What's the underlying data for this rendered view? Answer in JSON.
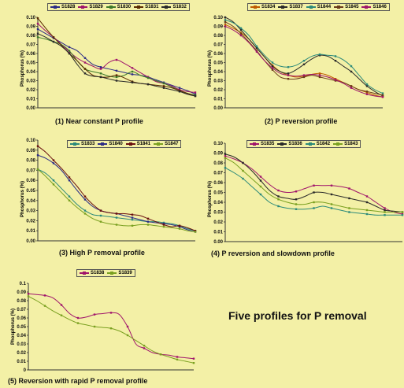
{
  "headline": "Five profiles for P removal",
  "chart_data": [
    {
      "type": "line",
      "caption": "(1) Near constant P profile",
      "ylabel": "Phosphorus (%)",
      "ylim": [
        0,
        0.1
      ],
      "yticks": [
        "0.00",
        "0.01",
        "0.02",
        "0.03",
        "0.04",
        "0.05",
        "0.06",
        "0.07",
        "0.08",
        "0.09",
        "0.10"
      ],
      "x": [
        0,
        1,
        2,
        3,
        4,
        5,
        6,
        7,
        8,
        9,
        10,
        11,
        12,
        13,
        14,
        15,
        16,
        17,
        18,
        19,
        20
      ],
      "series": [
        {
          "name": "S1828",
          "color": "#2c2c86",
          "values": [
            0.087,
            0.082,
            0.077,
            0.072,
            0.067,
            0.063,
            0.055,
            0.048,
            0.045,
            0.043,
            0.041,
            0.039,
            0.037,
            0.036,
            0.034,
            0.031,
            0.028,
            0.025,
            0.022,
            0.019,
            0.015
          ]
        },
        {
          "name": "S1829",
          "color": "#a0156b",
          "values": [
            0.093,
            0.085,
            0.078,
            0.07,
            0.062,
            0.055,
            0.05,
            0.046,
            0.043,
            0.05,
            0.053,
            0.049,
            0.044,
            0.039,
            0.034,
            0.029,
            0.027,
            0.024,
            0.02,
            0.018,
            0.017
          ]
        },
        {
          "name": "S1830",
          "color": "#3d7a2a",
          "values": [
            0.078,
            0.076,
            0.073,
            0.07,
            0.063,
            0.052,
            0.043,
            0.04,
            0.038,
            0.035,
            0.034,
            0.036,
            0.04,
            0.036,
            0.033,
            0.03,
            0.027,
            0.023,
            0.019,
            0.016,
            0.014
          ]
        },
        {
          "name": "S1831",
          "color": "#5a2a00",
          "values": [
            0.099,
            0.088,
            0.078,
            0.069,
            0.06,
            0.052,
            0.043,
            0.036,
            0.034,
            0.034,
            0.036,
            0.033,
            0.029,
            0.027,
            0.026,
            0.025,
            0.024,
            0.022,
            0.019,
            0.016,
            0.013
          ]
        },
        {
          "name": "S1832",
          "color": "#2a2a2a",
          "values": [
            0.082,
            0.078,
            0.073,
            0.068,
            0.06,
            0.048,
            0.038,
            0.035,
            0.034,
            0.032,
            0.03,
            0.029,
            0.028,
            0.027,
            0.026,
            0.024,
            0.022,
            0.02,
            0.018,
            0.015,
            0.013
          ]
        }
      ]
    },
    {
      "type": "line",
      "caption": "(2) P reversion profile",
      "ylabel": "Phosphorus (%)",
      "ylim": [
        0,
        0.1
      ],
      "yticks": [
        "0.00",
        "0.01",
        "0.02",
        "0.03",
        "0.04",
        "0.05",
        "0.06",
        "0.07",
        "0.08",
        "0.09",
        "0.10"
      ],
      "x": [
        0,
        1,
        2,
        3,
        4,
        5,
        6,
        7,
        8,
        9,
        10,
        11,
        12,
        13,
        14,
        15,
        16,
        17,
        18,
        19,
        20
      ],
      "series": [
        {
          "name": "S1834",
          "color": "#c05a00",
          "values": [
            0.092,
            0.088,
            0.083,
            0.076,
            0.066,
            0.056,
            0.047,
            0.04,
            0.036,
            0.034,
            0.035,
            0.037,
            0.038,
            0.036,
            0.032,
            0.028,
            0.024,
            0.02,
            0.017,
            0.014,
            0.012
          ]
        },
        {
          "name": "S1837",
          "color": "#2a2a2a",
          "values": [
            0.1,
            0.095,
            0.086,
            0.076,
            0.066,
            0.056,
            0.046,
            0.04,
            0.038,
            0.042,
            0.048,
            0.054,
            0.058,
            0.057,
            0.052,
            0.046,
            0.04,
            0.032,
            0.024,
            0.018,
            0.013
          ]
        },
        {
          "name": "S1844",
          "color": "#2c8a7a",
          "values": [
            0.097,
            0.094,
            0.088,
            0.08,
            0.068,
            0.058,
            0.05,
            0.046,
            0.045,
            0.047,
            0.052,
            0.057,
            0.059,
            0.058,
            0.057,
            0.053,
            0.046,
            0.036,
            0.026,
            0.02,
            0.016
          ]
        },
        {
          "name": "S1845",
          "color": "#6a3a1a",
          "values": [
            0.095,
            0.09,
            0.082,
            0.073,
            0.063,
            0.052,
            0.042,
            0.034,
            0.032,
            0.032,
            0.034,
            0.036,
            0.034,
            0.032,
            0.03,
            0.028,
            0.024,
            0.02,
            0.018,
            0.016,
            0.014
          ]
        },
        {
          "name": "S1846",
          "color": "#a0156b",
          "values": [
            0.09,
            0.086,
            0.08,
            0.072,
            0.062,
            0.052,
            0.044,
            0.038,
            0.036,
            0.035,
            0.036,
            0.037,
            0.036,
            0.034,
            0.031,
            0.027,
            0.022,
            0.018,
            0.015,
            0.013,
            0.012
          ]
        }
      ]
    },
    {
      "type": "line",
      "caption": "(3) High P removal profile",
      "ylabel": "Phosphorus (%)",
      "ylim": [
        0,
        0.1
      ],
      "yticks": [
        "0.00",
        "0.01",
        "0.02",
        "0.03",
        "0.04",
        "0.05",
        "0.06",
        "0.07",
        "0.08",
        "0.09",
        "0.10"
      ],
      "x": [
        0,
        1,
        2,
        3,
        4,
        5,
        6,
        7,
        8,
        9,
        10,
        11,
        12,
        13,
        14,
        15,
        16,
        17,
        18,
        19,
        20
      ],
      "series": [
        {
          "name": "S1833",
          "color": "#2c8a7a",
          "values": [
            0.071,
            0.067,
            0.06,
            0.052,
            0.044,
            0.036,
            0.03,
            0.026,
            0.025,
            0.024,
            0.023,
            0.022,
            0.021,
            0.02,
            0.019,
            0.019,
            0.018,
            0.017,
            0.015,
            0.012,
            0.01
          ]
        },
        {
          "name": "S1840",
          "color": "#2c2c86",
          "values": [
            0.085,
            0.082,
            0.077,
            0.07,
            0.06,
            0.05,
            0.041,
            0.034,
            0.03,
            0.028,
            0.027,
            0.025,
            0.023,
            0.021,
            0.019,
            0.018,
            0.017,
            0.016,
            0.014,
            0.011,
            0.009
          ]
        },
        {
          "name": "S1841",
          "color": "#6a1010",
          "values": [
            0.094,
            0.088,
            0.08,
            0.072,
            0.063,
            0.054,
            0.044,
            0.036,
            0.03,
            0.028,
            0.027,
            0.027,
            0.026,
            0.025,
            0.022,
            0.019,
            0.016,
            0.014,
            0.015,
            0.013,
            0.01
          ]
        },
        {
          "name": "S1847",
          "color": "#7aa020",
          "values": [
            0.071,
            0.064,
            0.056,
            0.048,
            0.04,
            0.033,
            0.027,
            0.022,
            0.019,
            0.017,
            0.016,
            0.015,
            0.015,
            0.016,
            0.016,
            0.015,
            0.014,
            0.013,
            0.012,
            0.01,
            0.009
          ]
        }
      ]
    },
    {
      "type": "line",
      "caption": "(4) P reversion and slowdown profile",
      "ylabel": "Phosphorus (%)",
      "ylim": [
        0,
        0.1
      ],
      "yticks": [
        "0.00",
        "0.01",
        "0.02",
        "0.03",
        "0.04",
        "0.05",
        "0.06",
        "0.07",
        "0.08",
        "0.09",
        "0.10"
      ],
      "x": [
        0,
        1,
        2,
        3,
        4,
        5,
        6,
        7,
        8,
        9,
        10,
        11,
        12,
        13,
        14,
        15,
        16,
        17,
        18,
        19,
        20
      ],
      "series": [
        {
          "name": "S1835",
          "color": "#a0156b",
          "values": [
            0.087,
            0.084,
            0.08,
            0.074,
            0.066,
            0.058,
            0.052,
            0.05,
            0.051,
            0.054,
            0.057,
            0.057,
            0.057,
            0.056,
            0.054,
            0.05,
            0.046,
            0.04,
            0.034,
            0.03,
            0.028
          ]
        },
        {
          "name": "S1836",
          "color": "#2a2a2a",
          "values": [
            0.089,
            0.086,
            0.08,
            0.072,
            0.062,
            0.052,
            0.046,
            0.044,
            0.043,
            0.046,
            0.05,
            0.05,
            0.048,
            0.046,
            0.044,
            0.042,
            0.04,
            0.036,
            0.032,
            0.031,
            0.03
          ]
        },
        {
          "name": "S1842",
          "color": "#2c8a7a",
          "values": [
            0.075,
            0.07,
            0.064,
            0.056,
            0.048,
            0.04,
            0.036,
            0.034,
            0.033,
            0.033,
            0.034,
            0.036,
            0.034,
            0.032,
            0.03,
            0.029,
            0.028,
            0.027,
            0.027,
            0.027,
            0.027
          ]
        },
        {
          "name": "S1843",
          "color": "#7aa020",
          "values": [
            0.085,
            0.08,
            0.072,
            0.064,
            0.056,
            0.048,
            0.043,
            0.04,
            0.038,
            0.038,
            0.04,
            0.04,
            0.038,
            0.036,
            0.034,
            0.033,
            0.032,
            0.031,
            0.03,
            0.03,
            0.03
          ]
        }
      ]
    },
    {
      "type": "line",
      "caption": "(5) Reversion with rapid P removal profile",
      "ylabel": "Phosphorus (%)",
      "ylim": [
        0,
        0.1
      ],
      "yticks": [
        "0",
        "0.01",
        "0.02",
        "0.03",
        "0.04",
        "0.05",
        "0.06",
        "0.07",
        "0.08",
        "0.09",
        "0.1"
      ],
      "x": [
        0,
        1,
        2,
        3,
        4,
        5,
        6,
        7,
        8,
        9,
        10,
        11,
        12,
        13,
        14,
        15,
        16,
        17,
        18,
        19,
        20
      ],
      "series": [
        {
          "name": "S1838",
          "color": "#a0156b",
          "values": [
            0.088,
            0.087,
            0.086,
            0.083,
            0.075,
            0.065,
            0.06,
            0.061,
            0.064,
            0.065,
            0.066,
            0.064,
            0.05,
            0.03,
            0.025,
            0.02,
            0.018,
            0.017,
            0.015,
            0.014,
            0.013
          ]
        },
        {
          "name": "S1839",
          "color": "#7aa020",
          "values": [
            0.085,
            0.08,
            0.074,
            0.068,
            0.063,
            0.058,
            0.054,
            0.052,
            0.05,
            0.049,
            0.048,
            0.045,
            0.04,
            0.034,
            0.028,
            0.022,
            0.018,
            0.015,
            0.012,
            0.01,
            0.008
          ]
        }
      ]
    }
  ]
}
